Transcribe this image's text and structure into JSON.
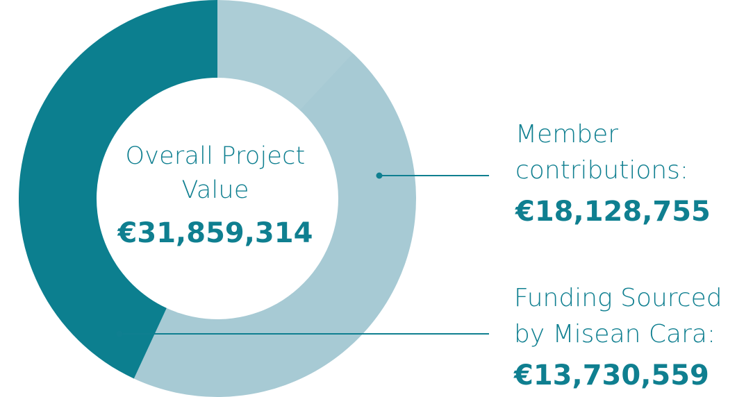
{
  "chart_data": {
    "type": "pie",
    "subtype": "donut",
    "center": {
      "label_line1": "Overall Project",
      "label_line2": "Value",
      "total": "€31,859,314"
    },
    "slices": [
      {
        "label_line1": "Member",
        "label_line2": "contributions:",
        "value": 18128755,
        "value_text": "€18,128,755",
        "color": "#a7cad4"
      },
      {
        "label_line1": "Funding Sourced",
        "label_line2": "by Misean Cara:",
        "value": 13730559,
        "value_text": "€13,730,559",
        "color": "#0c7f8f"
      }
    ],
    "colors": {
      "text": "#0f7f90",
      "leader_line": "#0f7f90",
      "background": "#ffffff"
    }
  }
}
